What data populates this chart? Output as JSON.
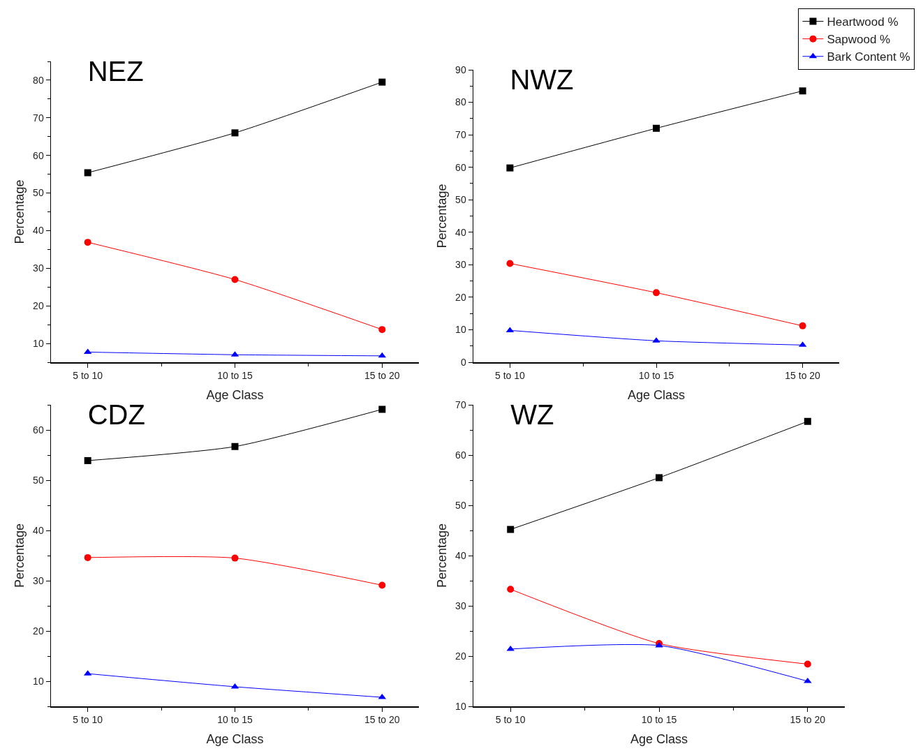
{
  "chart_data": [
    {
      "type": "line",
      "title": "NEZ",
      "xlabel": "Age Class",
      "ylabel": "Percentage",
      "categories": [
        "5 to 10",
        "10 to 15",
        "15 to 20"
      ],
      "ylim": [
        5,
        85
      ],
      "yticks": [
        10,
        20,
        30,
        40,
        50,
        60,
        70,
        80
      ],
      "grid": false,
      "legend": false,
      "series": [
        {
          "color": "#000000",
          "marker": "square",
          "values": [
            55.4,
            66,
            79.5
          ]
        },
        {
          "color": "#ff0000",
          "marker": "circle",
          "values": [
            36.9,
            27,
            13.7
          ]
        },
        {
          "color": "#0000ff",
          "marker": "triangle",
          "values": [
            7.7,
            7.0,
            6.7
          ]
        }
      ]
    },
    {
      "type": "line",
      "title": "NWZ",
      "xlabel": "Age Class",
      "ylabel": "Percentage",
      "categories": [
        "5 to 10",
        "10 to 15",
        "15 to 20"
      ],
      "ylim": [
        0,
        90
      ],
      "yticks": [
        0,
        10,
        20,
        30,
        40,
        50,
        60,
        70,
        80,
        90
      ],
      "grid": false,
      "legend": "top right",
      "series": [
        {
          "name": "Heartwood %",
          "color": "#000000",
          "marker": "square",
          "values": [
            59.8,
            72,
            83.5
          ]
        },
        {
          "name": "Sapwood %",
          "color": "#ff0000",
          "marker": "circle",
          "values": [
            30.4,
            21.4,
            11.2
          ]
        },
        {
          "name": "Bark Content %",
          "color": "#0000ff",
          "marker": "triangle",
          "values": [
            9.8,
            6.6,
            5.3
          ]
        }
      ]
    },
    {
      "type": "line",
      "title": "CDZ",
      "xlabel": "Age Class",
      "ylabel": "Percentage",
      "categories": [
        "5 to 10",
        "10 to 15",
        "15 to 20"
      ],
      "ylim": [
        5,
        65
      ],
      "yticks": [
        10,
        20,
        30,
        40,
        50,
        60
      ],
      "grid": false,
      "legend": false,
      "series": [
        {
          "color": "#000000",
          "marker": "square",
          "values": [
            53.9,
            56.7,
            64.1
          ]
        },
        {
          "color": "#ff0000",
          "marker": "circle",
          "values": [
            34.6,
            34.5,
            29.1
          ]
        },
        {
          "color": "#0000ff",
          "marker": "triangle",
          "values": [
            11.5,
            8.9,
            6.8
          ]
        }
      ]
    },
    {
      "type": "line",
      "title": "WZ",
      "xlabel": "Age Class",
      "ylabel": "Percentage",
      "categories": [
        "5 to 10",
        "10 to 15",
        "15 to 20"
      ],
      "ylim": [
        10,
        70
      ],
      "yticks": [
        10,
        20,
        30,
        40,
        50,
        60,
        70
      ],
      "grid": false,
      "legend": false,
      "series": [
        {
          "color": "#000000",
          "marker": "square",
          "values": [
            45.2,
            55.5,
            66.7
          ]
        },
        {
          "color": "#ff0000",
          "marker": "circle",
          "values": [
            33.3,
            22.5,
            18.4
          ]
        },
        {
          "color": "#0000ff",
          "marker": "triangle",
          "values": [
            21.4,
            22.1,
            15.0
          ]
        }
      ]
    }
  ]
}
